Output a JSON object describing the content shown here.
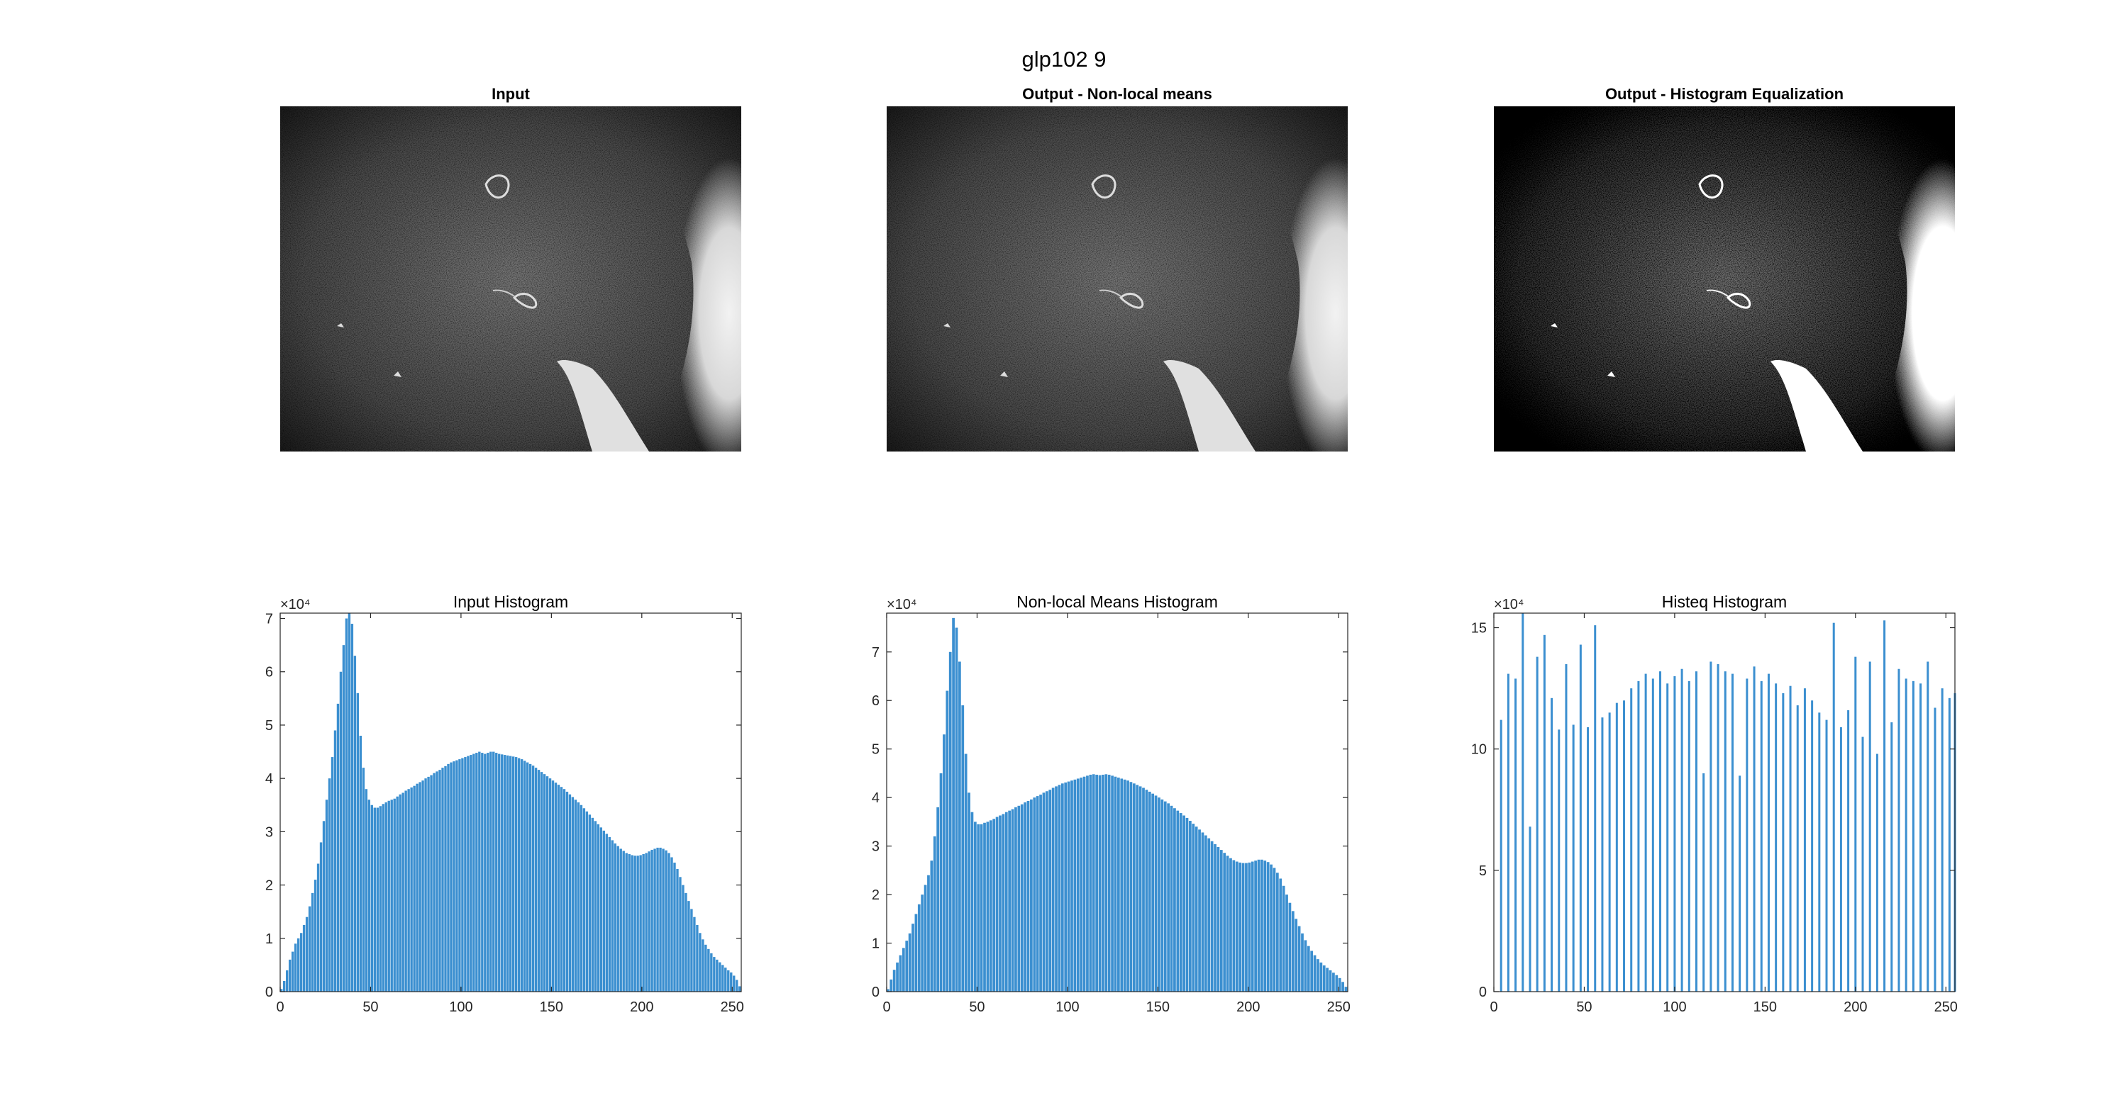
{
  "figure": {
    "suptitle": "glp102 9",
    "panels": [
      {
        "title": "Input"
      },
      {
        "title": "Output - Non-local means"
      },
      {
        "title": "Output - Histogram Equalization"
      }
    ]
  },
  "colors": {
    "bar": "#3b8fd0",
    "axes": "#262626",
    "background": "#ffffff"
  },
  "chart_data": [
    {
      "type": "bar",
      "title": "Input Histogram",
      "xlabel": "",
      "ylabel": "",
      "exponent": "×10⁴",
      "xlim": [
        0,
        255
      ],
      "ylim": [
        0,
        7.1
      ],
      "xticks": [
        0,
        50,
        100,
        150,
        200,
        250
      ],
      "yticks": [
        0,
        1,
        2,
        3,
        4,
        5,
        6,
        7
      ],
      "grid": false,
      "bins": "0–255, one bar per intensity level",
      "values": [
        0.05,
        0.2,
        0.4,
        0.6,
        0.75,
        0.9,
        1.0,
        1.1,
        1.25,
        1.4,
        1.6,
        1.85,
        2.1,
        2.4,
        2.8,
        3.2,
        3.6,
        4.0,
        4.4,
        4.9,
        5.4,
        6.0,
        6.5,
        7.0,
        7.1,
        6.9,
        6.3,
        5.6,
        4.8,
        4.2,
        3.8,
        3.6,
        3.5,
        3.45,
        3.45,
        3.48,
        3.52,
        3.55,
        3.58,
        3.6,
        3.62,
        3.66,
        3.7,
        3.73,
        3.77,
        3.8,
        3.83,
        3.86,
        3.9,
        3.93,
        3.96,
        4.0,
        4.03,
        4.06,
        4.1,
        4.13,
        4.16,
        4.2,
        4.23,
        4.27,
        4.3,
        4.32,
        4.34,
        4.36,
        4.38,
        4.4,
        4.42,
        4.44,
        4.46,
        4.48,
        4.5,
        4.48,
        4.46,
        4.48,
        4.5,
        4.5,
        4.48,
        4.46,
        4.45,
        4.44,
        4.43,
        4.42,
        4.41,
        4.4,
        4.38,
        4.36,
        4.33,
        4.3,
        4.27,
        4.24,
        4.2,
        4.16,
        4.12,
        4.08,
        4.04,
        4.0,
        3.96,
        3.92,
        3.88,
        3.84,
        3.8,
        3.75,
        3.7,
        3.65,
        3.6,
        3.55,
        3.5,
        3.44,
        3.38,
        3.32,
        3.26,
        3.2,
        3.14,
        3.08,
        3.02,
        2.96,
        2.9,
        2.84,
        2.78,
        2.73,
        2.68,
        2.64,
        2.6,
        2.58,
        2.56,
        2.55,
        2.55,
        2.56,
        2.58,
        2.6,
        2.63,
        2.66,
        2.68,
        2.7,
        2.7,
        2.68,
        2.65,
        2.6,
        2.52,
        2.42,
        2.3,
        2.15,
        2.0,
        1.85,
        1.7,
        1.55,
        1.4,
        1.25,
        1.1,
        0.98,
        0.88,
        0.8,
        0.72,
        0.65,
        0.6,
        0.55,
        0.5,
        0.45,
        0.4,
        0.36,
        0.3,
        0.22,
        0.1
      ]
    },
    {
      "type": "bar",
      "title": "Non-local Means Histogram",
      "xlabel": "",
      "ylabel": "",
      "exponent": "×10⁴",
      "xlim": [
        0,
        255
      ],
      "ylim": [
        0,
        7.8
      ],
      "xticks": [
        0,
        50,
        100,
        150,
        200,
        250
      ],
      "yticks": [
        0,
        1,
        2,
        3,
        4,
        5,
        6,
        7
      ],
      "grid": false,
      "bins": "0–255, one bar per intensity level",
      "values": [
        0.05,
        0.25,
        0.45,
        0.6,
        0.75,
        0.9,
        1.05,
        1.2,
        1.4,
        1.6,
        1.8,
        2.0,
        2.2,
        2.4,
        2.7,
        3.2,
        3.8,
        4.5,
        5.3,
        6.2,
        7.0,
        7.7,
        7.5,
        6.8,
        5.9,
        4.9,
        4.1,
        3.7,
        3.5,
        3.45,
        3.45,
        3.48,
        3.5,
        3.53,
        3.56,
        3.6,
        3.63,
        3.66,
        3.7,
        3.73,
        3.76,
        3.8,
        3.83,
        3.86,
        3.9,
        3.93,
        3.96,
        4.0,
        4.03,
        4.06,
        4.1,
        4.13,
        4.16,
        4.2,
        4.23,
        4.26,
        4.29,
        4.31,
        4.33,
        4.35,
        4.37,
        4.39,
        4.41,
        4.43,
        4.45,
        4.47,
        4.48,
        4.47,
        4.46,
        4.47,
        4.48,
        4.47,
        4.45,
        4.43,
        4.41,
        4.39,
        4.37,
        4.35,
        4.32,
        4.29,
        4.26,
        4.23,
        4.2,
        4.16,
        4.12,
        4.08,
        4.04,
        4.0,
        3.96,
        3.92,
        3.88,
        3.83,
        3.78,
        3.73,
        3.68,
        3.63,
        3.58,
        3.52,
        3.46,
        3.4,
        3.34,
        3.28,
        3.22,
        3.16,
        3.1,
        3.04,
        2.98,
        2.92,
        2.86,
        2.8,
        2.75,
        2.71,
        2.68,
        2.66,
        2.65,
        2.65,
        2.66,
        2.68,
        2.7,
        2.72,
        2.72,
        2.7,
        2.67,
        2.62,
        2.55,
        2.45,
        2.33,
        2.18,
        2.0,
        1.83,
        1.66,
        1.5,
        1.35,
        1.2,
        1.06,
        0.94,
        0.84,
        0.75,
        0.67,
        0.6,
        0.54,
        0.49,
        0.44,
        0.39,
        0.34,
        0.28,
        0.2,
        0.1
      ]
    },
    {
      "type": "bar",
      "title": "Histeq Histogram",
      "xlabel": "",
      "ylabel": "",
      "exponent": "×10⁴",
      "xlim": [
        0,
        255
      ],
      "ylim": [
        0,
        15.6
      ],
      "xticks": [
        0,
        50,
        100,
        150,
        200,
        250
      ],
      "yticks": [
        0,
        5,
        10,
        15
      ],
      "grid": false,
      "bins": "sparse spikes at equalized levels",
      "x": [
        4,
        8,
        12,
        16,
        20,
        24,
        28,
        32,
        36,
        40,
        44,
        48,
        52,
        56,
        60,
        64,
        68,
        72,
        76,
        80,
        84,
        88,
        92,
        96,
        100,
        104,
        108,
        112,
        116,
        120,
        124,
        128,
        132,
        136,
        140,
        144,
        148,
        152,
        156,
        160,
        164,
        168,
        172,
        176,
        180,
        184,
        188,
        192,
        196,
        200,
        204,
        208,
        212,
        216,
        220,
        224,
        228,
        232,
        236,
        240,
        244,
        248,
        252,
        255
      ],
      "values": [
        11.2,
        13.1,
        12.9,
        15.6,
        6.8,
        13.8,
        14.7,
        12.1,
        10.8,
        13.5,
        11.0,
        14.3,
        10.9,
        15.1,
        11.3,
        11.5,
        11.9,
        12.0,
        12.5,
        12.8,
        13.1,
        12.9,
        13.2,
        12.7,
        13.0,
        13.3,
        12.8,
        13.2,
        9.0,
        13.6,
        13.5,
        13.2,
        13.1,
        8.9,
        12.9,
        13.4,
        12.8,
        13.1,
        12.7,
        12.3,
        12.6,
        11.8,
        12.5,
        12.0,
        11.5,
        11.2,
        15.2,
        10.9,
        11.6,
        13.8,
        10.5,
        13.6,
        9.8,
        15.3,
        11.1,
        13.3,
        12.9,
        12.8,
        12.7,
        13.6,
        11.7,
        12.5,
        12.1,
        12.3
      ]
    }
  ]
}
